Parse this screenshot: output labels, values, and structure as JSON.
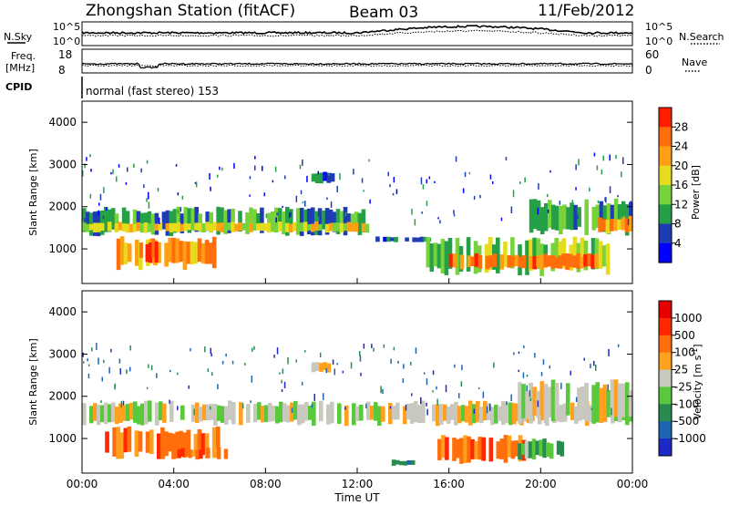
{
  "header": {
    "station": "Zhongshan Station (fitACF)",
    "beam": "Beam 03",
    "date": "11/Feb/2012"
  },
  "noise_panel": {
    "left_label": "N.Sky",
    "right_label": "N.Search",
    "left_ticks": [
      "10^5",
      "10^0"
    ],
    "right_ticks": [
      "10^5",
      "10^0"
    ]
  },
  "freq_panel": {
    "left_label_1": "Freq.",
    "left_label_2": "[MHz]",
    "right_label": "Nave",
    "left_ticks": [
      "18",
      "8"
    ],
    "right_ticks": [
      "60",
      "0"
    ]
  },
  "cpid_panel": {
    "label": "CPID",
    "text": "normal (fast stereo) 153"
  },
  "x_axis": {
    "label": "Time UT",
    "ticks": [
      "00:00",
      "04:00",
      "08:00",
      "12:00",
      "16:00",
      "20:00",
      "00:00"
    ]
  },
  "chart_data": [
    {
      "type": "heatmap",
      "name": "power",
      "xlabel": "Time UT",
      "ylabel": "Slant Range [km]",
      "xlim": [
        0,
        24
      ],
      "ylim": [
        180,
        4500
      ],
      "yticks": [
        "1000",
        "2000",
        "3000",
        "4000"
      ],
      "colorbar": {
        "label": "Power [dB]",
        "ticks": [
          "4",
          "8",
          "12",
          "16",
          "20",
          "24",
          "28"
        ],
        "colors": [
          "#0000ff",
          "#1e3cb4",
          "#26a046",
          "#78d23c",
          "#e6dc1e",
          "#ffa014",
          "#ff6e0a",
          "#ff1e00"
        ]
      },
      "regions": [
        {
          "t": [
            0.0,
            12.5
          ],
          "r": [
            1300,
            2000
          ],
          "level": 2
        },
        {
          "t": [
            0.0,
            12.5
          ],
          "r": [
            1380,
            1650
          ],
          "level": 4
        },
        {
          "t": [
            1.5,
            6.0
          ],
          "r": [
            500,
            1300
          ],
          "level": 5
        },
        {
          "t": [
            2.5,
            3.3
          ],
          "r": [
            650,
            1250
          ],
          "level": 7
        },
        {
          "t": [
            12.8,
            15.2
          ],
          "r": [
            1150,
            1300
          ],
          "level": 1
        },
        {
          "t": [
            15.0,
            23.0
          ],
          "r": [
            350,
            1300
          ],
          "level": 3
        },
        {
          "t": [
            16.0,
            22.5
          ],
          "r": [
            500,
            900
          ],
          "level": 6
        },
        {
          "t": [
            19.5,
            24.0
          ],
          "r": [
            1300,
            2200
          ],
          "level": 2
        },
        {
          "t": [
            22.5,
            24.0
          ],
          "r": [
            1350,
            1800
          ],
          "level": 5
        },
        {
          "t": [
            10.0,
            11.0
          ],
          "r": [
            2550,
            2850
          ],
          "level": 1
        }
      ]
    },
    {
      "type": "heatmap",
      "name": "velocity",
      "xlabel": "Time UT",
      "ylabel": "Slant Range [km]",
      "xlim": [
        0,
        24
      ],
      "ylim": [
        180,
        4500
      ],
      "yticks": [
        "1000",
        "2000",
        "3000",
        "4000"
      ],
      "colorbar": {
        "label": "Velocity [m s^-1]",
        "ticks": [
          "1000",
          "500",
          "100",
          "25",
          "-25",
          "-100",
          "-500",
          "-1000"
        ],
        "colors": [
          "#1e28c8",
          "#1e64b4",
          "#288c50",
          "#5ac83c",
          "#c8c8be",
          "#ffa01e",
          "#ff6e0a",
          "#ff2800",
          "#e60000"
        ]
      },
      "regions": [
        {
          "t": [
            0.0,
            24.0
          ],
          "r": [
            1300,
            1900
          ],
          "level": 4
        },
        {
          "t": [
            1.0,
            6.0
          ],
          "r": [
            500,
            1300
          ],
          "level": 6
        },
        {
          "t": [
            4.0,
            6.5
          ],
          "r": [
            500,
            800
          ],
          "level": 6
        },
        {
          "t": [
            15.5,
            19.5
          ],
          "r": [
            400,
            1100
          ],
          "level": 6
        },
        {
          "t": [
            19.0,
            21.0
          ],
          "r": [
            500,
            1000
          ],
          "level": 3
        },
        {
          "t": [
            19.0,
            24.0
          ],
          "r": [
            1300,
            2400
          ],
          "level": 4
        },
        {
          "t": [
            13.5,
            14.5
          ],
          "r": [
            350,
            500
          ],
          "level": 2
        },
        {
          "t": [
            10.0,
            11.0
          ],
          "r": [
            2550,
            2850
          ],
          "level": 4
        }
      ]
    }
  ]
}
